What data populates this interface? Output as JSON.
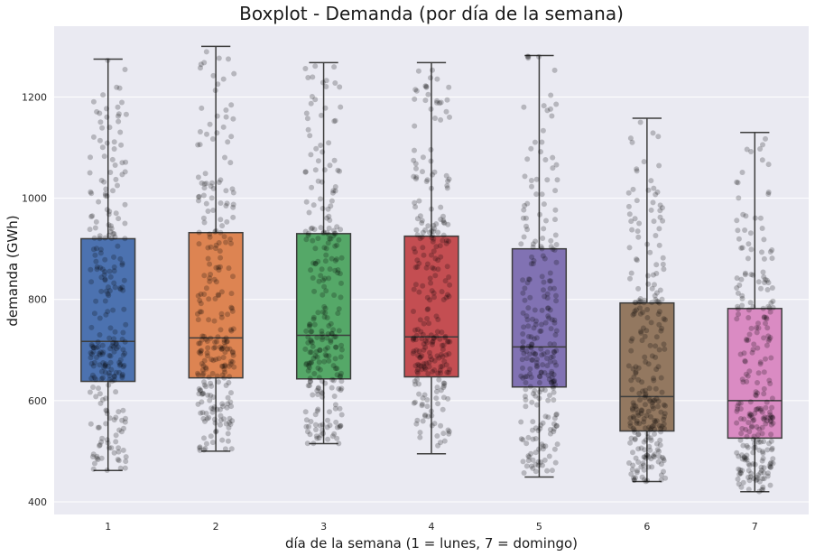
{
  "chart_data": {
    "type": "box",
    "title": "Boxplot - Demanda (por día de la semana)",
    "xlabel": "día de la semana (1 = lunes, 7 = domingo)",
    "ylabel": "demanda (GWh)",
    "categories": [
      "1",
      "2",
      "3",
      "4",
      "5",
      "6",
      "7"
    ],
    "yticks": [
      400,
      600,
      800,
      1000,
      1200
    ],
    "ytick_labels": [
      "400",
      "600",
      "800",
      "1000",
      "1200"
    ],
    "ylim": [
      375,
      1340
    ],
    "grid": true,
    "background": "#eaeaf2",
    "boxes": [
      {
        "category": "1",
        "whisker_low": 462,
        "q1": 638,
        "median": 717,
        "q3": 920,
        "whisker_high": 1275,
        "color": "#4c72b0"
      },
      {
        "category": "2",
        "whisker_low": 500,
        "q1": 645,
        "median": 724,
        "q3": 932,
        "whisker_high": 1300,
        "color": "#dd8452"
      },
      {
        "category": "3",
        "whisker_low": 515,
        "q1": 643,
        "median": 729,
        "q3": 930,
        "whisker_high": 1268,
        "color": "#55a868"
      },
      {
        "category": "4",
        "whisker_low": 495,
        "q1": 647,
        "median": 726,
        "q3": 925,
        "whisker_high": 1268,
        "color": "#c44e52"
      },
      {
        "category": "5",
        "whisker_low": 449,
        "q1": 627,
        "median": 706,
        "q3": 900,
        "whisker_high": 1282,
        "color": "#8172b3"
      },
      {
        "category": "6",
        "whisker_low": 440,
        "q1": 540,
        "median": 608,
        "q3": 793,
        "whisker_high": 1158,
        "color": "#937860"
      },
      {
        "category": "7",
        "whisker_low": 420,
        "q1": 526,
        "median": 600,
        "q3": 782,
        "whisker_high": 1130,
        "color": "#da8bc3"
      }
    ],
    "points_per_category": 260,
    "point_color": "#000000",
    "point_alpha": 0.22
  }
}
